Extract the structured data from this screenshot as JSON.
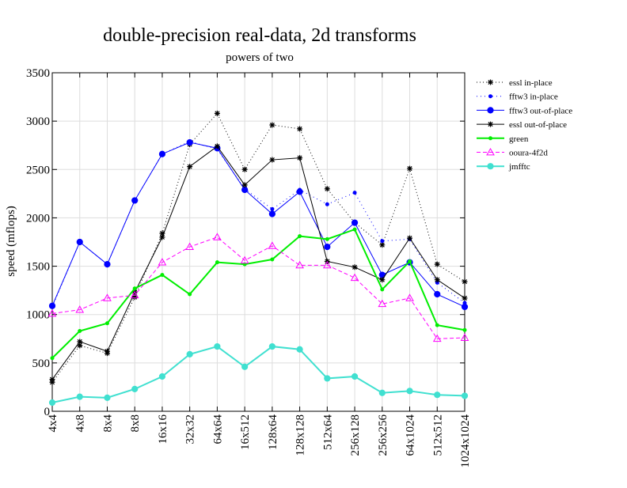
{
  "chart_data": {
    "type": "line",
    "title": "double-precision real-data, 2d transforms",
    "subtitle": "powers of two",
    "xlabel": "",
    "ylabel": "speed (mflops)",
    "ylim": [
      0,
      3500
    ],
    "yticks": [
      0,
      500,
      1000,
      1500,
      2000,
      2500,
      3000,
      3500
    ],
    "grid": true,
    "legend_position": "right",
    "categories": [
      "4x4",
      "4x8",
      "8x4",
      "8x8",
      "16x16",
      "32x32",
      "64x64",
      "16x512",
      "128x64",
      "128x128",
      "512x64",
      "256x128",
      "256x256",
      "64x1024",
      "512x512",
      "1024x1024"
    ],
    "series": [
      {
        "name": "essl in-place",
        "color": "#000000",
        "dash": "1,3",
        "marker": "star",
        "values": [
          300,
          680,
          600,
          1180,
          1840,
          2760,
          3080,
          2500,
          2960,
          2920,
          2300,
          1950,
          1720,
          2510,
          1520,
          1340
        ]
      },
      {
        "name": "fftw3 in-place",
        "color": "#0000ff",
        "dash": "1,4",
        "marker": "smalldot",
        "values": [
          1080,
          1750,
          1520,
          2180,
          2660,
          2790,
          2710,
          2300,
          2090,
          2290,
          2140,
          2260,
          1760,
          1780,
          1330,
          1120
        ]
      },
      {
        "name": "fftw3 out-of-place",
        "color": "#0000ff",
        "dash": "",
        "marker": "dot",
        "values": [
          1090,
          1750,
          1520,
          2180,
          2660,
          2780,
          2720,
          2290,
          2040,
          2270,
          1700,
          1950,
          1410,
          1540,
          1210,
          1080
        ]
      },
      {
        "name": "essl out-of-place",
        "color": "#000000",
        "dash": "",
        "marker": "star",
        "values": [
          330,
          720,
          620,
          1230,
          1800,
          2530,
          2740,
          2340,
          2600,
          2620,
          1550,
          1490,
          1360,
          1790,
          1360,
          1170
        ]
      },
      {
        "name": "green",
        "color": "#00ee00",
        "dash": "",
        "marker": "smalldot",
        "width": 2,
        "values": [
          550,
          830,
          910,
          1270,
          1410,
          1210,
          1540,
          1520,
          1570,
          1810,
          1780,
          1880,
          1260,
          1550,
          890,
          840
        ]
      },
      {
        "name": "ooura-4f2d",
        "color": "#ff00ff",
        "dash": "5,3",
        "marker": "triangle",
        "values": [
          1010,
          1050,
          1170,
          1200,
          1540,
          1700,
          1800,
          1560,
          1710,
          1510,
          1510,
          1380,
          1110,
          1170,
          750,
          760
        ]
      },
      {
        "name": "jmfftc",
        "color": "#40e0d0",
        "dash": "",
        "marker": "dot",
        "width": 2,
        "values": [
          90,
          150,
          140,
          230,
          360,
          590,
          670,
          460,
          670,
          640,
          340,
          360,
          190,
          210,
          170,
          160
        ]
      }
    ]
  }
}
